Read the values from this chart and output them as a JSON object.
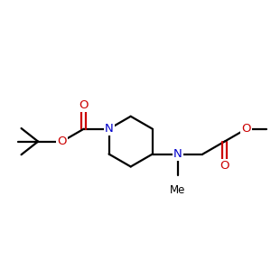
{
  "bg_color": "#ffffff",
  "bond_color": "#000000",
  "N_color": "#0000cc",
  "O_color": "#cc0000",
  "lw": 1.6,
  "figsize": [
    3.0,
    3.0
  ],
  "dpi": 100,
  "xlim": [
    -0.5,
    10.5
  ],
  "ylim": [
    2.0,
    8.5
  ]
}
